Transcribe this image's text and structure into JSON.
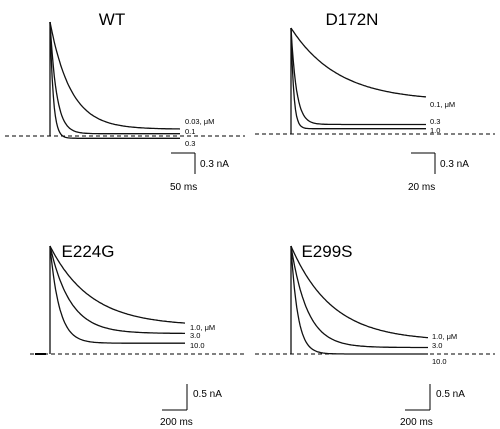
{
  "chart_data": [
    {
      "type": "line",
      "title": "WT",
      "traces": [
        {
          "label": "0.03, μM",
          "plateau": 0.06,
          "tau": 0.16
        },
        {
          "label": "0.1",
          "plateau": 0.02,
          "tau": 0.05
        },
        {
          "label": "0.3",
          "plateau": -0.02,
          "tau": 0.025
        }
      ],
      "scale_bar": {
        "x_label": "50 ms",
        "y_label": "0.3 nA"
      }
    },
    {
      "type": "line",
      "title": "D172N",
      "traces": [
        {
          "label": "0.1, μM",
          "plateau": 0.31,
          "tau": 0.35
        },
        {
          "label": "0.3",
          "plateau": 0.09,
          "tau": 0.04
        },
        {
          "label": "1.0",
          "plateau": 0.05,
          "tau": 0.02
        }
      ],
      "scale_bar": {
        "x_label": "20 ms",
        "y_label": "0.3 nA"
      }
    },
    {
      "type": "line",
      "title": "E224G",
      "traces": [
        {
          "label": "1.0, μM",
          "plateau": 0.26,
          "tau": 0.3
        },
        {
          "label": "3.0",
          "plateau": 0.19,
          "tau": 0.15
        },
        {
          "label": "10.0",
          "plateau": 0.1,
          "tau": 0.07
        }
      ],
      "scale_bar": {
        "x_label": "200 ms",
        "y_label": "0.5 nA"
      }
    },
    {
      "type": "line",
      "title": "E299S",
      "traces": [
        {
          "label": "1.0, μM",
          "plateau": 0.12,
          "tau": 0.3
        },
        {
          "label": "3.0",
          "plateau": 0.06,
          "tau": 0.12
        },
        {
          "label": "10.0",
          "plateau": 0.0,
          "tau": 0.05
        }
      ],
      "scale_bar": {
        "x_label": "200 ms",
        "y_label": "0.5 nA"
      }
    }
  ]
}
